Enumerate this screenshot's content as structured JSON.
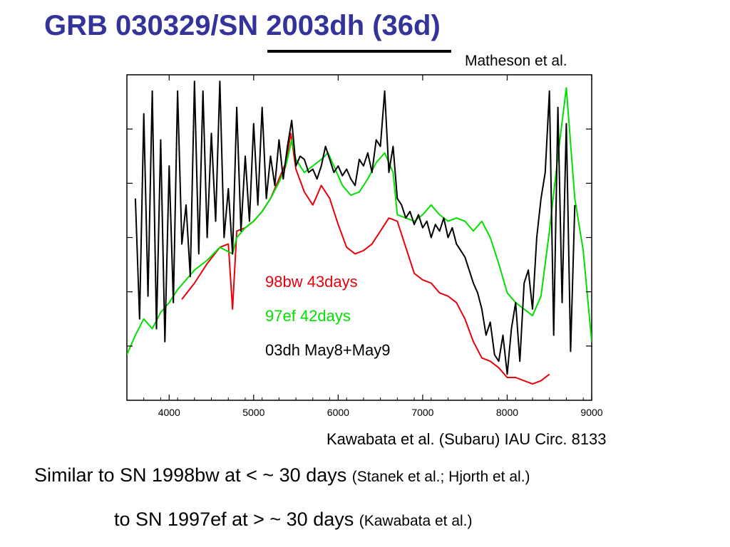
{
  "slide": {
    "title": "GRB 030329/SN 2003dh (36d)",
    "attribution_top": "Matheson et al.",
    "credit": "Kawabata et al. (Subaru)  IAU Circ. 8133",
    "line1_main": "Similar to SN 1998bw at < ~ 30 days ",
    "line1_ref": "(Stanek et al.; Hjorth et al.)",
    "line2_main": "to SN 1997ef at > ~ 30 days ",
    "line2_ref": "(Kawabata et al.)"
  },
  "chart_data": {
    "type": "line",
    "title": "",
    "xlabel": "",
    "ylabel": "",
    "xlim": [
      3500,
      9000
    ],
    "ylim": [
      0,
      1
    ],
    "x_ticks": [
      4000,
      5000,
      6000,
      7000,
      8000,
      9000
    ],
    "y_ticks": [],
    "grid": false,
    "legend_position": "inside, center-left",
    "series": [
      {
        "name": "98bw 43days",
        "color": "#e8000b",
        "x": [
          4150,
          4300,
          4450,
          4600,
          4700,
          4750,
          4800,
          4900,
          5000,
          5100,
          5200,
          5300,
          5380,
          5440,
          5500,
          5600,
          5700,
          5800,
          5900,
          6000,
          6100,
          6200,
          6300,
          6400,
          6500,
          6600,
          6700,
          6800,
          6900,
          7000,
          7100,
          7200,
          7300,
          7400,
          7500,
          7600,
          7700,
          7800,
          7900,
          8000,
          8100,
          8200,
          8300,
          8400,
          8500
        ],
        "values": [
          0.31,
          0.36,
          0.42,
          0.47,
          0.48,
          0.28,
          0.52,
          0.53,
          0.55,
          0.58,
          0.62,
          0.68,
          0.73,
          0.82,
          0.71,
          0.64,
          0.6,
          0.66,
          0.62,
          0.54,
          0.47,
          0.45,
          0.46,
          0.48,
          0.52,
          0.56,
          0.55,
          0.47,
          0.39,
          0.37,
          0.36,
          0.33,
          0.32,
          0.3,
          0.25,
          0.18,
          0.13,
          0.12,
          0.1,
          0.07,
          0.07,
          0.06,
          0.05,
          0.06,
          0.08
        ]
      },
      {
        "name": "97ef 42days",
        "color": "#00e000",
        "x": [
          3500,
          3600,
          3700,
          3800,
          3900,
          4000,
          4100,
          4200,
          4300,
          4450,
          4600,
          4750,
          4800,
          4900,
          5000,
          5100,
          5200,
          5300,
          5380,
          5450,
          5500,
          5600,
          5700,
          5800,
          5880,
          5950,
          6050,
          6150,
          6250,
          6350,
          6450,
          6550,
          6650,
          6700,
          6800,
          6900,
          7000,
          7100,
          7200,
          7300,
          7400,
          7500,
          7600,
          7700,
          7800,
          7900,
          8000,
          8100,
          8200,
          8300,
          8400,
          8500,
          8600,
          8700,
          8800,
          8900,
          9000
        ],
        "values": [
          0.14,
          0.2,
          0.25,
          0.22,
          0.27,
          0.3,
          0.34,
          0.37,
          0.4,
          0.43,
          0.47,
          0.45,
          0.5,
          0.53,
          0.55,
          0.58,
          0.62,
          0.67,
          0.72,
          0.8,
          0.74,
          0.7,
          0.72,
          0.74,
          0.76,
          0.72,
          0.66,
          0.63,
          0.64,
          0.68,
          0.73,
          0.76,
          0.7,
          0.57,
          0.56,
          0.55,
          0.57,
          0.6,
          0.57,
          0.55,
          0.56,
          0.55,
          0.52,
          0.55,
          0.5,
          0.42,
          0.33,
          0.3,
          0.28,
          0.26,
          0.32,
          0.52,
          0.75,
          0.96,
          0.62,
          0.46,
          0.18
        ]
      },
      {
        "name": "03dh May8+May9",
        "color": "#000000",
        "x": [
          3600,
          3650,
          3700,
          3750,
          3800,
          3850,
          3900,
          3950,
          4000,
          4050,
          4100,
          4150,
          4200,
          4250,
          4300,
          4350,
          4400,
          4450,
          4500,
          4550,
          4600,
          4650,
          4700,
          4750,
          4800,
          4850,
          4900,
          4950,
          5000,
          5050,
          5100,
          5150,
          5200,
          5250,
          5300,
          5350,
          5400,
          5450,
          5500,
          5550,
          5600,
          5650,
          5700,
          5750,
          5800,
          5850,
          5900,
          5950,
          6000,
          6050,
          6100,
          6150,
          6200,
          6250,
          6300,
          6350,
          6400,
          6450,
          6500,
          6550,
          6600,
          6650,
          6700,
          6750,
          6800,
          6850,
          6900,
          6950,
          7000,
          7050,
          7100,
          7150,
          7200,
          7250,
          7300,
          7350,
          7400,
          7450,
          7500,
          7550,
          7600,
          7650,
          7700,
          7750,
          7800,
          7850,
          7900,
          7950,
          8000,
          8050,
          8100,
          8150,
          8200,
          8250,
          8300,
          8350,
          8400,
          8450,
          8500,
          8550,
          8600,
          8650,
          8700,
          8750,
          8800
        ],
        "values": [
          0.62,
          0.25,
          0.88,
          0.32,
          0.95,
          0.22,
          0.8,
          0.18,
          0.72,
          0.3,
          0.95,
          0.48,
          0.6,
          0.38,
          0.98,
          0.45,
          0.95,
          0.5,
          0.82,
          0.55,
          0.98,
          0.5,
          0.65,
          0.45,
          0.9,
          0.52,
          0.75,
          0.55,
          0.85,
          0.6,
          0.9,
          0.62,
          0.75,
          0.66,
          0.8,
          0.68,
          0.78,
          0.86,
          0.72,
          0.75,
          0.74,
          0.7,
          0.71,
          0.68,
          0.72,
          0.78,
          0.74,
          0.7,
          0.72,
          0.69,
          0.71,
          0.68,
          0.66,
          0.74,
          0.72,
          0.76,
          0.7,
          0.8,
          0.78,
          0.95,
          0.7,
          0.78,
          0.62,
          0.6,
          0.56,
          0.58,
          0.54,
          0.57,
          0.53,
          0.55,
          0.5,
          0.54,
          0.52,
          0.56,
          0.5,
          0.53,
          0.48,
          0.46,
          0.44,
          0.4,
          0.36,
          0.33,
          0.28,
          0.2,
          0.24,
          0.14,
          0.12,
          0.2,
          0.08,
          0.22,
          0.3,
          0.12,
          0.36,
          0.4,
          0.28,
          0.5,
          0.62,
          0.7,
          0.95,
          0.2,
          0.9,
          0.3,
          0.85,
          0.15,
          0.6
        ]
      }
    ],
    "legend": [
      {
        "label": "98bw 43days",
        "color": "#e8000b"
      },
      {
        "label": "97ef 42days",
        "color": "#00e000"
      },
      {
        "label": "03dh May8+May9",
        "color": "#000000"
      }
    ]
  }
}
